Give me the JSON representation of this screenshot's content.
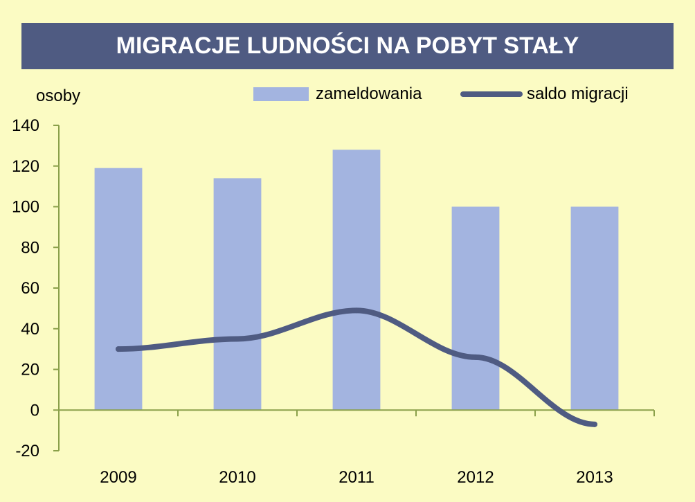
{
  "chart_data": {
    "type": "bar+line",
    "title": "MIGRACJE LUDNOŚCI NA POBYT STAŁY",
    "ylabel": "osoby",
    "categories": [
      "2009",
      "2010",
      "2011",
      "2012",
      "2013"
    ],
    "series": [
      {
        "name": "zameldowania",
        "type": "bar",
        "color": "#a3b4e0",
        "values": [
          119,
          114,
          128,
          100,
          100
        ]
      },
      {
        "name": "saldo migracji",
        "type": "line",
        "color": "#4f5b82",
        "values": [
          30,
          35,
          49,
          26,
          -7
        ]
      }
    ],
    "ylim": [
      -20,
      140
    ],
    "yticks": [
      "140",
      "120",
      "100",
      "80",
      "60",
      "40",
      "20",
      "0",
      "-20"
    ],
    "legend_placement": "top-right",
    "grid": false
  }
}
